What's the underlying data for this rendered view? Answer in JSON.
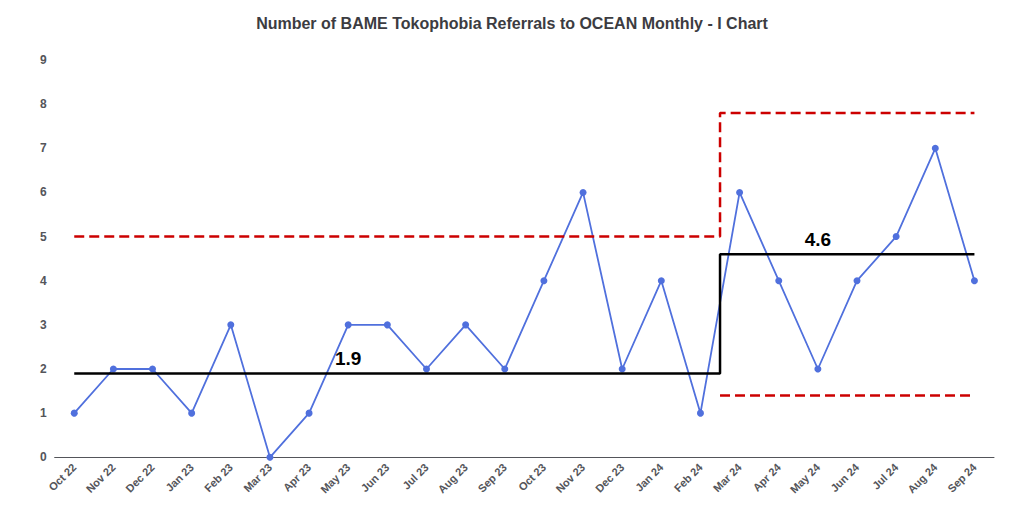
{
  "chart_data": {
    "type": "line",
    "title": "Number of BAME Tokophobia Referrals to OCEAN Monthly - I Chart",
    "categories": [
      "Oct 22",
      "Nov 22",
      "Dec 22",
      "Jan 23",
      "Feb 23",
      "Mar 23",
      "Apr 23",
      "May 23",
      "Jun 23",
      "Jul 23",
      "Aug 23",
      "Sep 23",
      "Oct 23",
      "Nov 23",
      "Dec 23",
      "Jan 24",
      "Feb 24",
      "Mar 24",
      "Apr 24",
      "May 24",
      "Jun 24",
      "Jul 24",
      "Aug 24",
      "Sep 24"
    ],
    "series": [
      {
        "type": "line",
        "marker": "circle",
        "line_style": "solid",
        "values": [
          1,
          2,
          2,
          1,
          3,
          0,
          1,
          3,
          3,
          2,
          3,
          2,
          4,
          6,
          2,
          4,
          1,
          6,
          4,
          2,
          4,
          5,
          7,
          4
        ]
      },
      {
        "type": "line",
        "marker": "none",
        "line_style": "solid",
        "color": "#000000",
        "values": [
          1.9,
          1.9,
          1.9,
          1.9,
          1.9,
          1.9,
          1.9,
          1.9,
          1.9,
          1.9,
          1.9,
          1.9,
          1.9,
          1.9,
          1.9,
          1.9,
          1.9,
          4.6,
          4.6,
          4.6,
          4.6,
          4.6,
          4.6,
          4.6
        ],
        "value_labels": [
          null,
          null,
          null,
          null,
          null,
          null,
          null,
          "1.9",
          null,
          null,
          null,
          null,
          null,
          null,
          null,
          null,
          null,
          null,
          null,
          "4.6",
          null,
          null,
          null,
          null
        ]
      },
      {
        "type": "line",
        "marker": "none",
        "line_style": "dashed",
        "color": "#cc0000",
        "values": [
          5.0,
          5.0,
          5.0,
          5.0,
          5.0,
          5.0,
          5.0,
          5.0,
          5.0,
          5.0,
          5.0,
          5.0,
          5.0,
          5.0,
          5.0,
          5.0,
          5.0,
          7.8,
          7.8,
          7.8,
          7.8,
          7.8,
          7.8,
          7.8
        ]
      },
      {
        "type": "line",
        "marker": "none",
        "line_style": "dashed",
        "color": "#cc0000",
        "values": [
          null,
          null,
          null,
          null,
          null,
          null,
          null,
          null,
          null,
          null,
          null,
          null,
          null,
          null,
          null,
          null,
          null,
          1.4,
          1.4,
          1.4,
          1.4,
          1.4,
          1.4,
          1.4
        ]
      }
    ],
    "ylim": [
      0,
      9
    ],
    "yticks": [
      0,
      1,
      2,
      3,
      4,
      5,
      6,
      7,
      8,
      9
    ],
    "grid": false
  }
}
